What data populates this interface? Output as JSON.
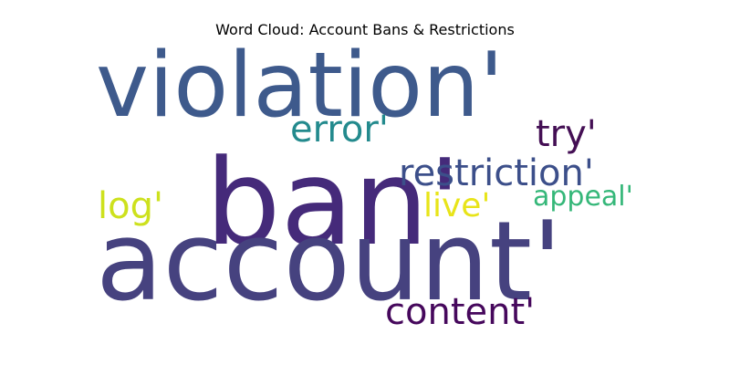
{
  "title": "Word Cloud: Account Bans & Restrictions",
  "words": [
    {
      "text": "violation'",
      "color": "#3e5a8c",
      "rank": 2
    },
    {
      "text": "ban'",
      "color": "#452a7a",
      "rank": 1
    },
    {
      "text": "account'",
      "color": "#46427f",
      "rank": 1
    },
    {
      "text": "error'",
      "color": "#238a8d",
      "rank": 4
    },
    {
      "text": "try'",
      "color": "#440f54",
      "rank": 4
    },
    {
      "text": "restriction'",
      "color": "#3c4f8a",
      "rank": 3
    },
    {
      "text": "log'",
      "color": "#cde11d",
      "rank": 4
    },
    {
      "text": "live'",
      "color": "#e8e419",
      "rank": 5
    },
    {
      "text": "appeal'",
      "color": "#35b779",
      "rank": 5
    },
    {
      "text": "content'",
      "color": "#46085c",
      "rank": 4
    }
  ]
}
